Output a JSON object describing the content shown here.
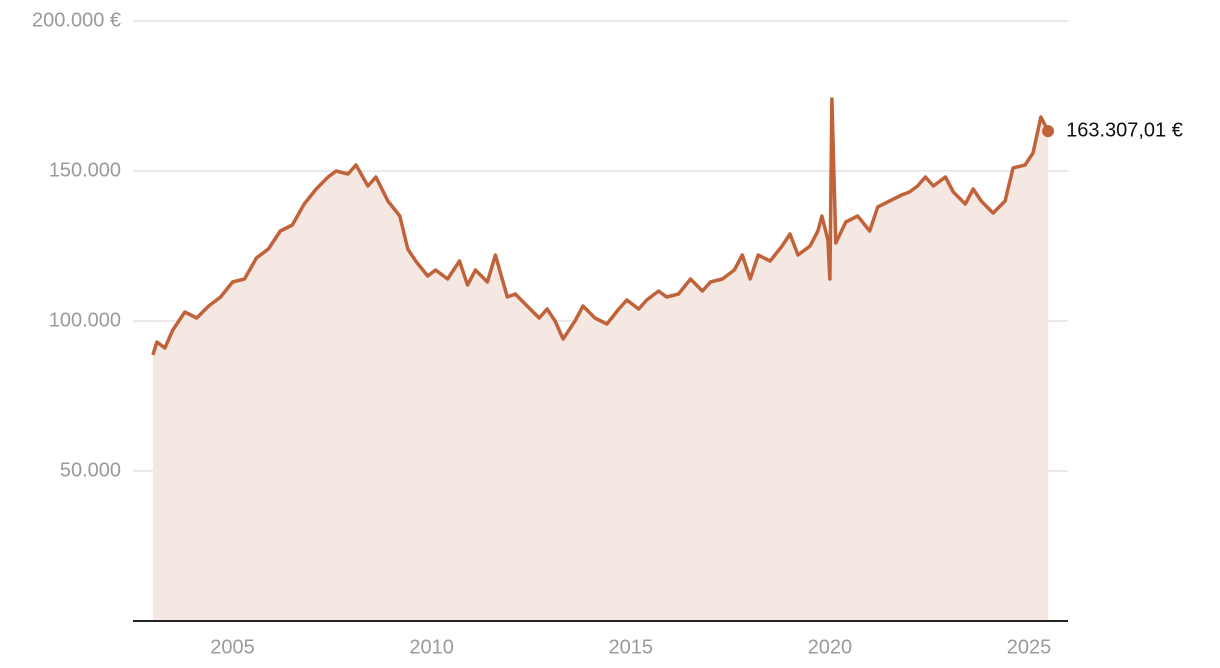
{
  "chart_data": {
    "type": "area",
    "x": [
      2003.0,
      2003.1,
      2003.3,
      2003.5,
      2003.8,
      2004.1,
      2004.4,
      2004.7,
      2005.0,
      2005.3,
      2005.6,
      2005.9,
      2006.2,
      2006.5,
      2006.8,
      2007.1,
      2007.4,
      2007.6,
      2007.9,
      2008.1,
      2008.4,
      2008.6,
      2008.9,
      2009.2,
      2009.4,
      2009.6,
      2009.9,
      2010.1,
      2010.4,
      2010.7,
      2010.9,
      2011.1,
      2011.4,
      2011.6,
      2011.9,
      2012.1,
      2012.4,
      2012.7,
      2012.9,
      2013.1,
      2013.3,
      2013.6,
      2013.8,
      2014.1,
      2014.4,
      2014.7,
      2014.9,
      2015.2,
      2015.4,
      2015.7,
      2015.9,
      2016.2,
      2016.5,
      2016.8,
      2017.0,
      2017.3,
      2017.6,
      2017.8,
      2018.0,
      2018.2,
      2018.5,
      2018.8,
      2019.0,
      2019.2,
      2019.5,
      2019.7,
      2019.8,
      2019.95,
      2020.0,
      2020.05,
      2020.15,
      2020.4,
      2020.7,
      2021.0,
      2021.2,
      2021.5,
      2021.8,
      2022.0,
      2022.2,
      2022.4,
      2022.6,
      2022.9,
      2023.1,
      2023.4,
      2023.6,
      2023.8,
      2024.1,
      2024.4,
      2024.6,
      2024.9,
      2025.1,
      2025.3,
      2025.48
    ],
    "series": [
      {
        "color": "#c0623a",
        "fill": "#f5e7e1",
        "values": [
          88700,
          93000,
          91000,
          97000,
          103000,
          101000,
          105000,
          108000,
          113000,
          114000,
          121000,
          124000,
          130000,
          132000,
          139000,
          144000,
          148000,
          150000,
          149000,
          152000,
          145000,
          148000,
          140000,
          135000,
          124000,
          120000,
          115000,
          117000,
          114000,
          120000,
          112000,
          117000,
          113000,
          122000,
          108000,
          109000,
          105000,
          101000,
          104000,
          100000,
          94000,
          100000,
          105000,
          101000,
          99000,
          104000,
          107000,
          104000,
          107000,
          110000,
          108000,
          109000,
          114000,
          110000,
          113000,
          114000,
          117000,
          122000,
          114000,
          122000,
          120000,
          125000,
          129000,
          122000,
          125000,
          130000,
          135000,
          127000,
          114000,
          174000,
          126000,
          133000,
          135000,
          130000,
          138000,
          140000,
          142000,
          143000,
          145000,
          148000,
          145000,
          148000,
          143000,
          139000,
          144000,
          140000,
          136000,
          140000,
          151000,
          152000,
          156000,
          168000,
          163307.01
        ]
      }
    ],
    "annotation": {
      "value": 163307.01,
      "label": "163.307,01 €"
    },
    "xlim": [
      2002.5,
      2025.98
    ],
    "xticks": [
      2005,
      2010,
      2015,
      2020,
      2025
    ],
    "ylim": [
      0,
      200000
    ],
    "yticks": [
      {
        "value": 50000,
        "label": "50.000"
      },
      {
        "value": 100000,
        "label": "100.000"
      },
      {
        "value": 150000,
        "label": "150.000"
      },
      {
        "value": 200000,
        "label": "200.000 €"
      }
    ],
    "grid": true
  }
}
